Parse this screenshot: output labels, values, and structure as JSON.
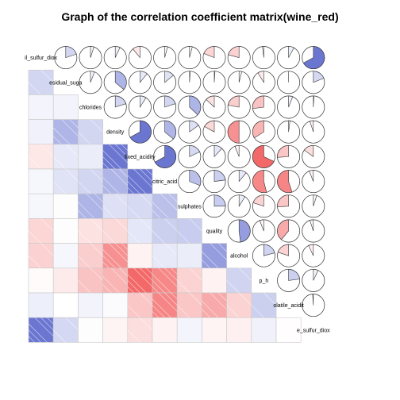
{
  "chart_data": {
    "type": "heatmap",
    "title": "Graph of the correlation coefficient matrix(wine_red)",
    "subtitle": "",
    "variables": [
      "il_sulfur_diox",
      "esidual_suga",
      "chlorides",
      "density",
      "fixed_acidity",
      "citric_acid",
      "sulphates",
      "quality",
      "alcohol",
      "p_h",
      "volatile_acidit",
      "e_sulfur_diox"
    ],
    "diagonal_labels": [
      "il_sulfur_diox",
      "esidual_suga",
      "chlorides",
      "density",
      "fixed_acidity",
      "citric_acid",
      "sulphates",
      "quality",
      "alcohol",
      "p_h",
      "olatile_acidit",
      "e_sulfur_diox"
    ],
    "lower_panel": "shade",
    "upper_panel": "pie",
    "legend": "none",
    "grid": false,
    "colors": {
      "positive": "#2233bb",
      "negative": "#ee2222",
      "background": "#ffffff",
      "cell_border": "#c8c8c8",
      "pie_border": "#333333"
    },
    "matrix": [
      [
        1.0,
        0.2,
        0.05,
        0.07,
        -0.11,
        0.04,
        0.04,
        -0.19,
        -0.21,
        -0.02,
        0.08,
        0.67
      ],
      [
        0.2,
        1.0,
        0.06,
        0.36,
        0.11,
        0.14,
        0.01,
        0.01,
        0.04,
        -0.09,
        0.0,
        0.19
      ],
      [
        0.05,
        0.06,
        1.0,
        0.2,
        0.09,
        0.2,
        0.37,
        -0.13,
        -0.22,
        -0.27,
        0.06,
        0.01
      ],
      [
        0.07,
        0.36,
        0.2,
        1.0,
        0.67,
        0.36,
        0.15,
        -0.17,
        -0.5,
        -0.34,
        0.02,
        -0.05
      ],
      [
        -0.11,
        0.11,
        0.09,
        0.67,
        1.0,
        0.67,
        0.18,
        0.12,
        -0.06,
        -0.68,
        -0.26,
        -0.15
      ],
      [
        0.04,
        0.14,
        0.2,
        0.36,
        0.67,
        1.0,
        0.31,
        0.23,
        0.11,
        -0.54,
        -0.55,
        -0.06
      ],
      [
        0.04,
        0.01,
        0.37,
        0.15,
        0.18,
        0.31,
        1.0,
        0.25,
        0.09,
        -0.2,
        -0.26,
        0.05
      ],
      [
        -0.19,
        0.01,
        -0.13,
        -0.17,
        0.12,
        0.23,
        0.25,
        1.0,
        0.48,
        -0.06,
        -0.39,
        -0.05
      ],
      [
        -0.21,
        0.04,
        -0.22,
        -0.5,
        -0.06,
        0.11,
        0.09,
        0.48,
        1.0,
        0.21,
        -0.2,
        -0.07
      ],
      [
        -0.02,
        -0.09,
        -0.27,
        -0.34,
        -0.68,
        -0.54,
        -0.2,
        -0.06,
        0.21,
        1.0,
        0.23,
        0.07
      ],
      [
        0.08,
        0.0,
        0.06,
        0.02,
        -0.26,
        -0.55,
        -0.26,
        -0.39,
        -0.2,
        0.23,
        1.0,
        -0.01
      ],
      [
        0.67,
        0.19,
        0.01,
        -0.05,
        -0.15,
        -0.06,
        0.05,
        -0.05,
        -0.07,
        0.07,
        -0.01,
        1.0
      ]
    ]
  }
}
